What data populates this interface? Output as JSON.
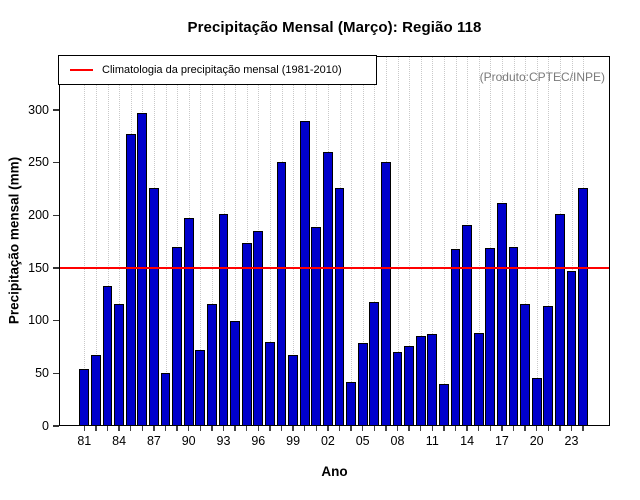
{
  "figure": {
    "title": "Precipitação Mensal (Março): Região 118",
    "annotation": "(Produto:CPTEC/INPE)"
  },
  "legend": {
    "label": "Climatologia da precipitação mensal (1981-2010)",
    "line_color": "#ff0000"
  },
  "chart_data": {
    "type": "bar",
    "title": "Precipitação Mensal (Março): Região 118",
    "xlabel": "Ano",
    "ylabel": "Precipitação mensal (mm)",
    "ylim": [
      0,
      300
    ],
    "yticks": [
      0,
      50,
      100,
      150,
      200,
      250,
      300
    ],
    "grid": "vertical-dotted",
    "legend_position": "top-left",
    "categories": [
      "81",
      "82",
      "83",
      "84",
      "85",
      "86",
      "87",
      "88",
      "89",
      "90",
      "91",
      "92",
      "93",
      "94",
      "95",
      "96",
      "97",
      "98",
      "99",
      "00",
      "01",
      "02",
      "03",
      "04",
      "05",
      "06",
      "07",
      "08",
      "09",
      "10",
      "11",
      "12",
      "13",
      "14",
      "15",
      "16",
      "17",
      "18",
      "19",
      "20",
      "21",
      "22",
      "23",
      "24"
    ],
    "values": [
      54,
      67,
      133,
      116,
      277,
      297,
      226,
      50,
      170,
      197,
      72,
      116,
      201,
      100,
      174,
      185,
      80,
      251,
      67,
      290,
      189,
      260,
      226,
      42,
      79,
      118,
      251,
      70,
      76,
      85,
      87,
      40,
      168,
      191,
      88,
      169,
      212,
      170,
      116,
      46,
      114,
      201,
      147,
      226
    ],
    "x_tick_labels": [
      "81",
      "84",
      "87",
      "90",
      "93",
      "96",
      "99",
      "02",
      "05",
      "08",
      "11",
      "14",
      "17",
      "20",
      "23"
    ],
    "x_tick_step": 3,
    "reference_line": {
      "value": 150,
      "color": "#ff0000",
      "label": "Climatologia da precipitação mensal (1981-2010)"
    },
    "bar_color": "#0000cc",
    "bar_border_color": "#000000",
    "grid_color": "#c9c9c9"
  }
}
